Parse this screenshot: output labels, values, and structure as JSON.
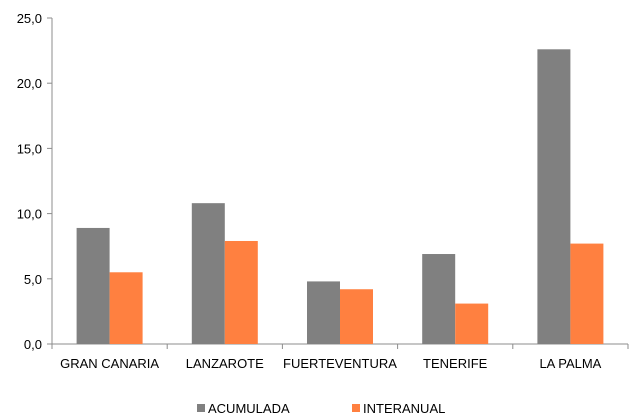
{
  "chart_data": {
    "type": "bar",
    "categories": [
      "GRAN CANARIA",
      "LANZAROTE",
      "FUERTEVENTURA",
      "TENERIFE",
      "LA PALMA"
    ],
    "series": [
      {
        "name": "ACUMULADA",
        "values": [
          8.9,
          10.8,
          4.8,
          6.9,
          22.6
        ],
        "color": "#808080"
      },
      {
        "name": "INTERANUAL",
        "values": [
          5.5,
          7.9,
          4.2,
          3.1,
          7.7
        ],
        "color": "#ff8040"
      }
    ],
    "yticks": [
      "0,0",
      "5,0",
      "10,0",
      "15,0",
      "20,0",
      "25,0"
    ],
    "ylim": [
      0,
      25
    ],
    "grid": false,
    "legend": "bottom"
  }
}
